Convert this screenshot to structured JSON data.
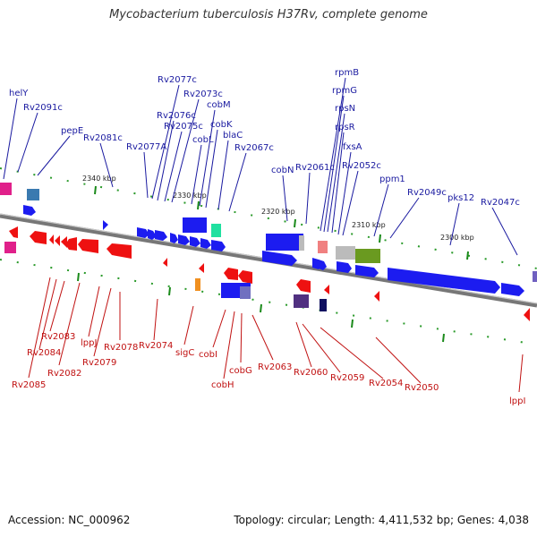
{
  "title": "Mycobacterium tuberculosis H37Rv, complete genome",
  "footer": {
    "accession": "Accession: NC_000962",
    "summary": "Topology: circular; Length: 4,411,532 bp; Genes: 4,038"
  },
  "colors": {
    "forward": "#1c1cf0",
    "reverse": "#ee1111",
    "forward_label": "#1a1aa0",
    "reverse_label": "#c01010",
    "tick": "#1a8a1a",
    "backbone": "#888888"
  },
  "scale_ticks": [
    "2340 kbp",
    "2330 kbp",
    "2320 kbp",
    "2310 kbp",
    "2300 kbp"
  ],
  "forward_genes": [
    "helY",
    "Rv2091c",
    "pepE",
    "Rv2081c",
    "Rv2077A",
    "Rv2077c",
    "Rv2076c",
    "Rv2075c",
    "Rv2073c",
    "cobL",
    "cobM",
    "cobK",
    "blaC",
    "Rv2067c",
    "cobN",
    "Rv2061c",
    "rpmB",
    "rpmG",
    "rpsN",
    "rpsR",
    "fxsA",
    "Rv2052c",
    "ppm1",
    "Rv2049c",
    "pks12",
    "Rv2047c"
  ],
  "reverse_genes": [
    "Rv2085",
    "Rv2084",
    "Rv2083",
    "Rv2082",
    "lppJ",
    "Rv2079",
    "Rv2078",
    "Rv2074",
    "sigC",
    "cobI",
    "cobH",
    "cobG",
    "Rv2063",
    "Rv2060",
    "Rv2059",
    "Rv2054",
    "Rv2050",
    "lppI"
  ]
}
